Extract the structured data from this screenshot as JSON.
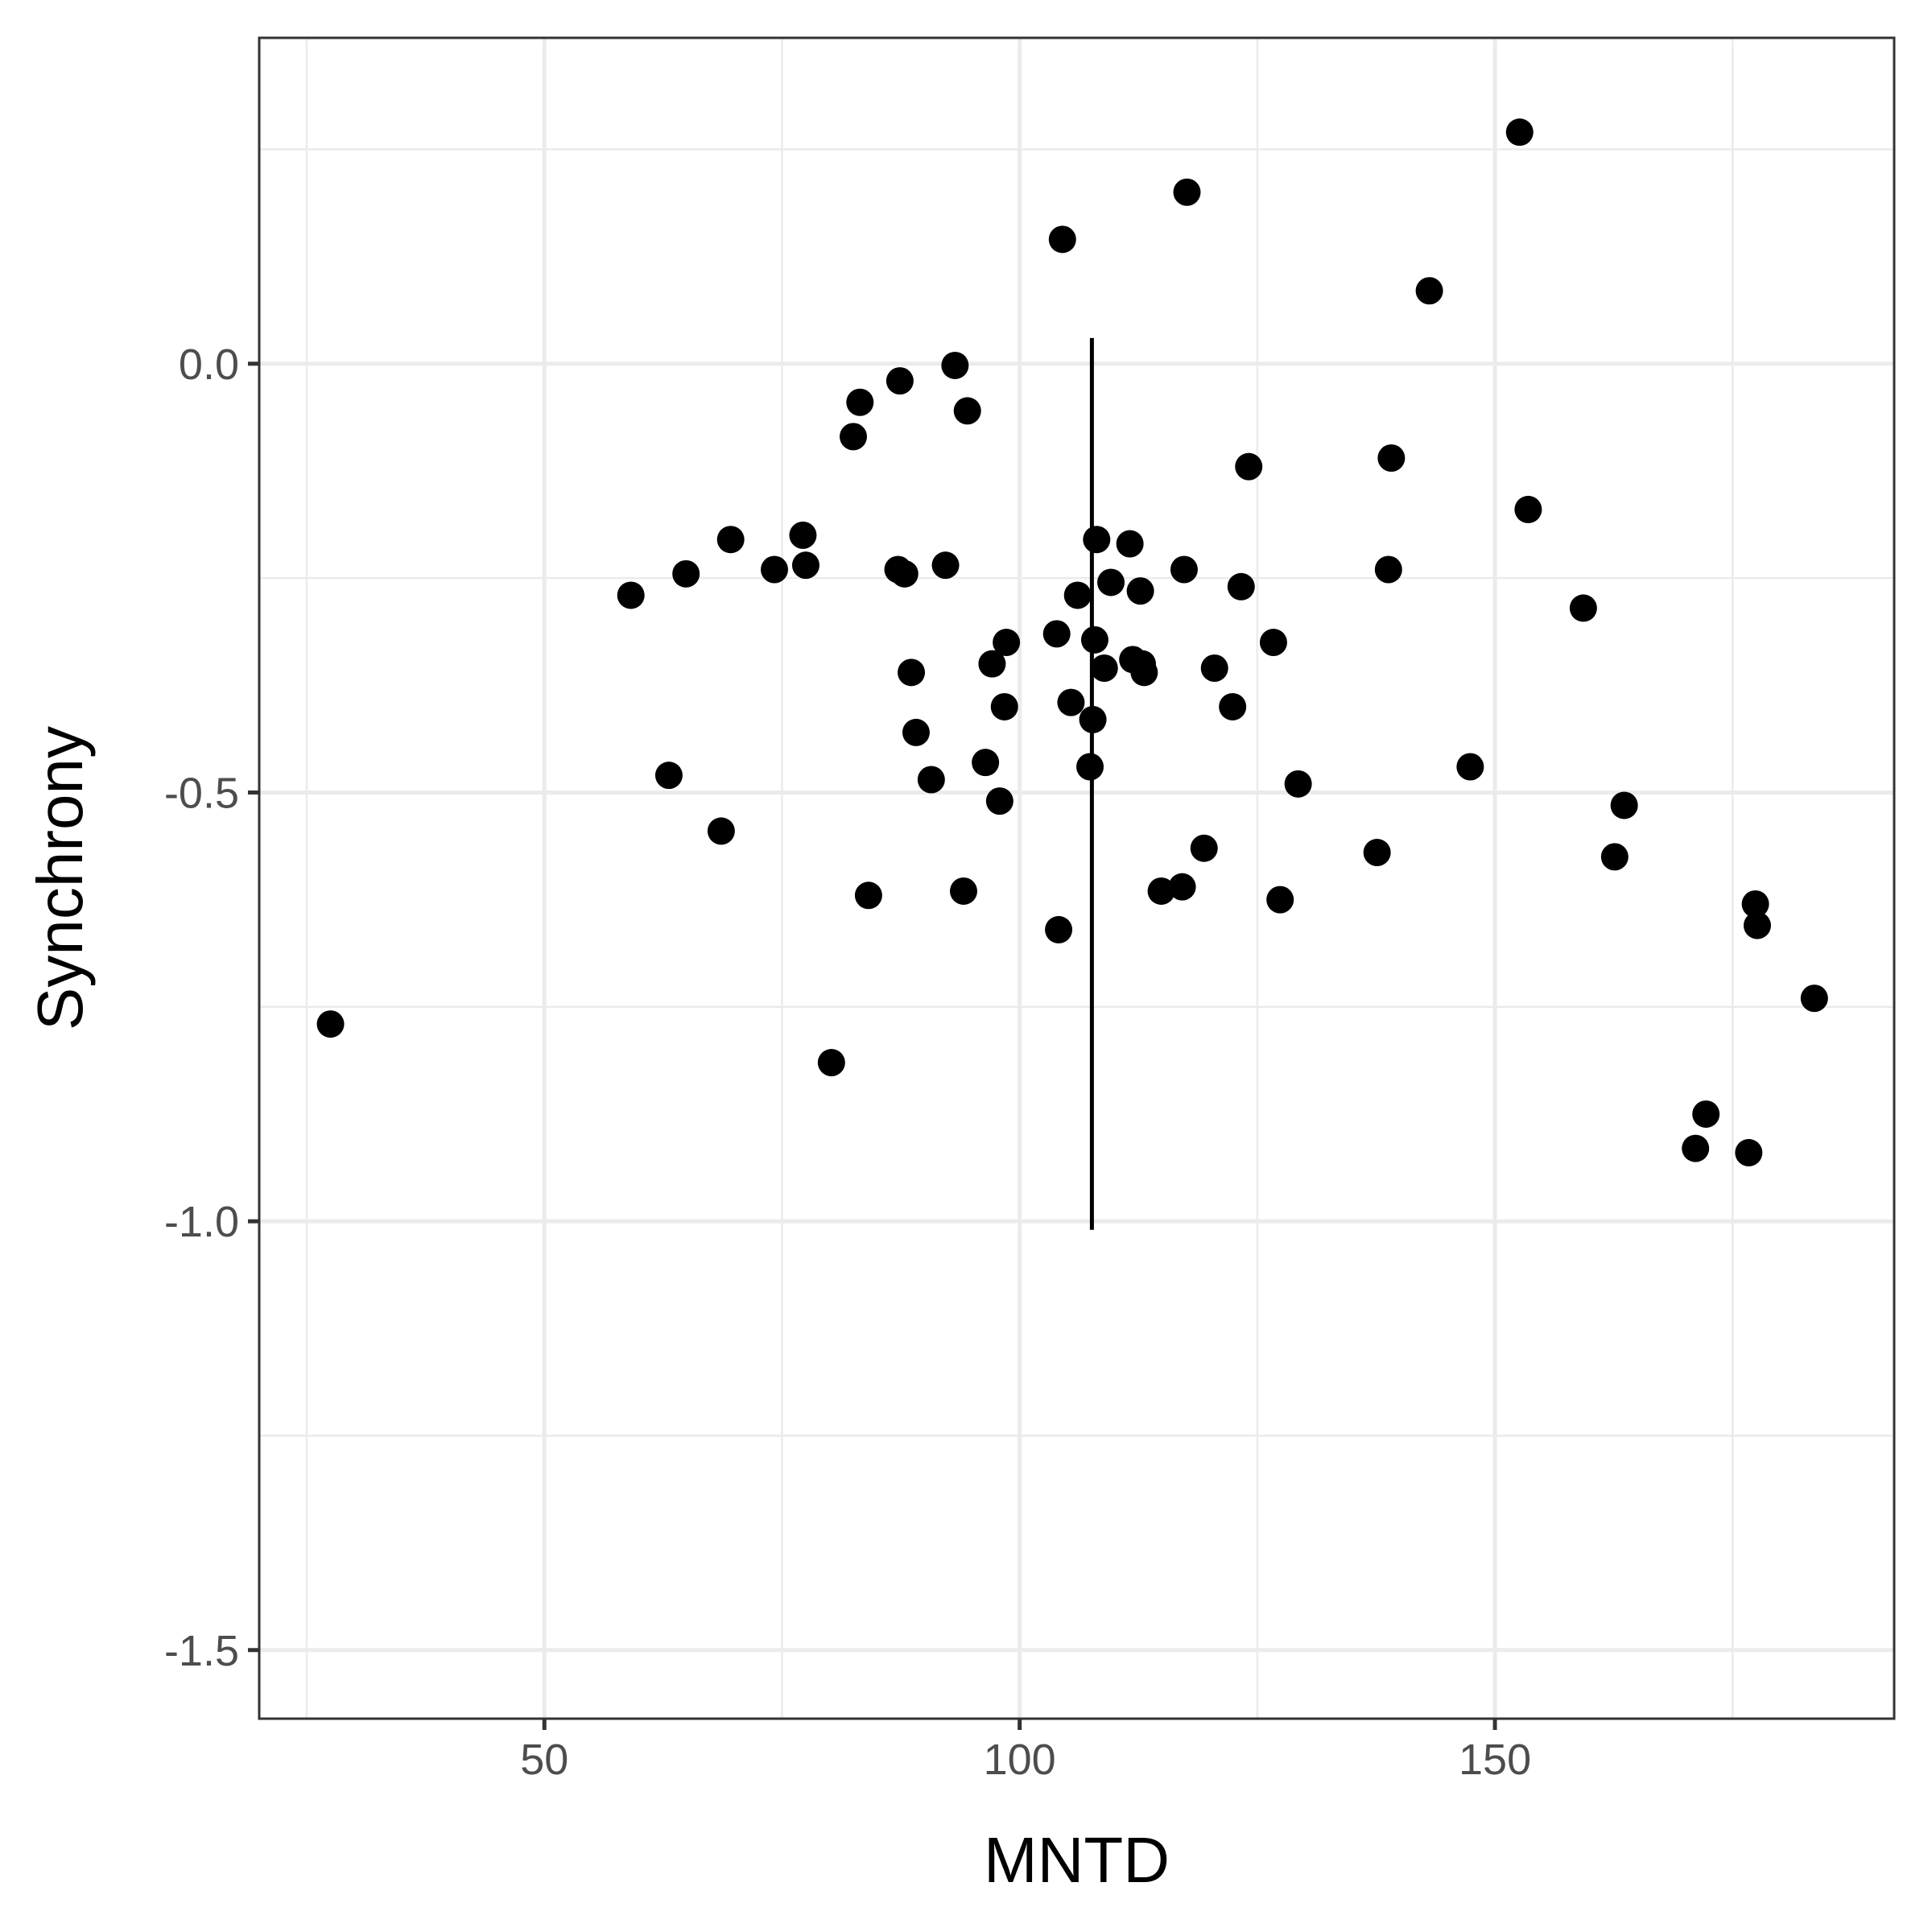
{
  "chart_data": {
    "type": "scatter",
    "xlabel": "MNTD",
    "ylabel": "Synchrony",
    "xlim": [
      20,
      192
    ],
    "ylim": [
      -1.58,
      0.38
    ],
    "x_ticks": [
      50,
      100,
      150
    ],
    "x_tick_labels": [
      "50",
      "100",
      "150"
    ],
    "y_ticks": [
      0.0,
      -0.5,
      -1.0,
      -1.5
    ],
    "y_tick_labels": [
      "0.0",
      "-0.5",
      "-1.0",
      "-1.5"
    ],
    "x_minor_grid": [
      25,
      75,
      125,
      175
    ],
    "y_minor_grid": [
      0.25,
      -0.25,
      -0.75,
      -1.25
    ],
    "grid": true,
    "theme_colors": {
      "points": "#000000",
      "grid": "#ebebeb",
      "panel_border": "#333333",
      "tick_text": "#4d4d4d"
    },
    "vertical_segment": {
      "x": 107.6,
      "y_start": 0.03,
      "y_end": -1.01
    },
    "points": [
      {
        "x": 27.5,
        "y": -0.77
      },
      {
        "x": 59.1,
        "y": -0.27
      },
      {
        "x": 63.1,
        "y": -0.48
      },
      {
        "x": 64.9,
        "y": -0.245
      },
      {
        "x": 68.6,
        "y": -0.545
      },
      {
        "x": 69.6,
        "y": -0.205
      },
      {
        "x": 74.2,
        "y": -0.24
      },
      {
        "x": 77.2,
        "y": -0.2
      },
      {
        "x": 77.5,
        "y": -0.235
      },
      {
        "x": 80.2,
        "y": -0.815
      },
      {
        "x": 82.5,
        "y": -0.085
      },
      {
        "x": 83.2,
        "y": -0.045
      },
      {
        "x": 84.1,
        "y": -0.62
      },
      {
        "x": 87.4,
        "y": -0.02
      },
      {
        "x": 87.2,
        "y": -0.24
      },
      {
        "x": 87.9,
        "y": -0.245
      },
      {
        "x": 88.6,
        "y": -0.36
      },
      {
        "x": 89.1,
        "y": -0.43
      },
      {
        "x": 90.7,
        "y": -0.485
      },
      {
        "x": 92.2,
        "y": -0.235
      },
      {
        "x": 93.2,
        "y": -0.002
      },
      {
        "x": 94.1,
        "y": -0.615
      },
      {
        "x": 94.5,
        "y": -0.055
      },
      {
        "x": 96.4,
        "y": -0.465
      },
      {
        "x": 97.1,
        "y": -0.35
      },
      {
        "x": 97.9,
        "y": -0.51
      },
      {
        "x": 98.4,
        "y": -0.4
      },
      {
        "x": 98.6,
        "y": -0.325
      },
      {
        "x": 103.9,
        "y": -0.315
      },
      {
        "x": 104.1,
        "y": -0.66
      },
      {
        "x": 104.5,
        "y": 0.145
      },
      {
        "x": 105.4,
        "y": -0.395
      },
      {
        "x": 106.1,
        "y": -0.27
      },
      {
        "x": 107.4,
        "y": -0.47
      },
      {
        "x": 107.7,
        "y": -0.415
      },
      {
        "x": 107.9,
        "y": -0.322
      },
      {
        "x": 108.1,
        "y": -0.205
      },
      {
        "x": 108.9,
        "y": -0.355
      },
      {
        "x": 109.6,
        "y": -0.255
      },
      {
        "x": 111.6,
        "y": -0.21
      },
      {
        "x": 111.9,
        "y": -0.345
      },
      {
        "x": 112.7,
        "y": -0.265
      },
      {
        "x": 112.9,
        "y": -0.35
      },
      {
        "x": 113.1,
        "y": -0.36
      },
      {
        "x": 114.9,
        "y": -0.615
      },
      {
        "x": 117.1,
        "y": -0.61
      },
      {
        "x": 117.3,
        "y": -0.24
      },
      {
        "x": 117.6,
        "y": 0.2
      },
      {
        "x": 119.4,
        "y": -0.565
      },
      {
        "x": 120.5,
        "y": -0.355
      },
      {
        "x": 122.4,
        "y": -0.4
      },
      {
        "x": 123.3,
        "y": -0.26
      },
      {
        "x": 124.1,
        "y": -0.12
      },
      {
        "x": 126.7,
        "y": -0.325
      },
      {
        "x": 127.4,
        "y": -0.625
      },
      {
        "x": 129.3,
        "y": -0.49
      },
      {
        "x": 137.6,
        "y": -0.57
      },
      {
        "x": 138.8,
        "y": -0.24
      },
      {
        "x": 139.1,
        "y": -0.11
      },
      {
        "x": 143.1,
        "y": 0.085
      },
      {
        "x": 147.4,
        "y": -0.47
      },
      {
        "x": 152.6,
        "y": 0.27
      },
      {
        "x": 153.5,
        "y": -0.17
      },
      {
        "x": 159.3,
        "y": -0.285
      },
      {
        "x": 162.6,
        "y": -0.575
      },
      {
        "x": 163.6,
        "y": -0.515
      },
      {
        "x": 171.1,
        "y": -0.915
      },
      {
        "x": 172.2,
        "y": -0.875
      },
      {
        "x": 176.7,
        "y": -0.92
      },
      {
        "x": 177.4,
        "y": -0.63
      },
      {
        "x": 177.6,
        "y": -0.655
      },
      {
        "x": 183.6,
        "y": -0.74
      }
    ]
  }
}
